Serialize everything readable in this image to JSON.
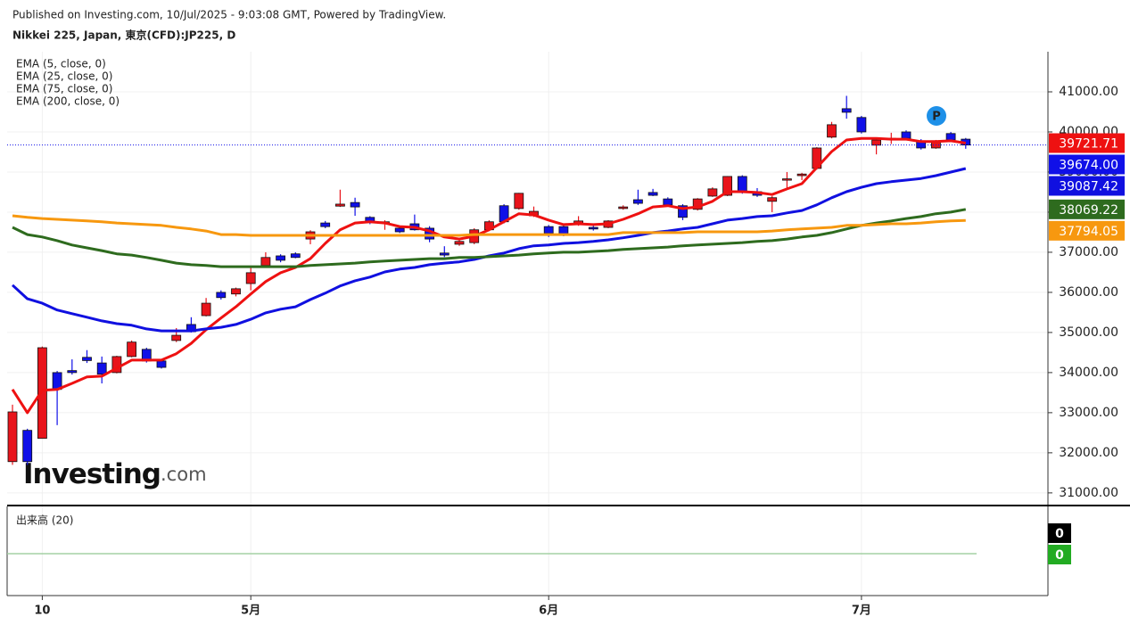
{
  "header": {
    "published": "Published on Investing.com, 10/Jul/2025 - 9:03:08 GMT, Powered by TradingView."
  },
  "chart_data": {
    "type": "candlestick",
    "title": "Nikkei 225, Japan, 東京(CFD):JP225, D",
    "logo": [
      "Investing",
      ".com"
    ],
    "marker_label": "P",
    "up_color": "#e8141b",
    "down_color": "#1010e8",
    "categories": [
      null,
      null,
      "10",
      null,
      null,
      null,
      null,
      null,
      null,
      null,
      null,
      null,
      null,
      null,
      null,
      null,
      "5月",
      null,
      null,
      null,
      null,
      null,
      null,
      null,
      null,
      null,
      null,
      null,
      null,
      null,
      null,
      null,
      null,
      null,
      null,
      null,
      "6月",
      null,
      null,
      null,
      null,
      null,
      null,
      null,
      null,
      null,
      null,
      null,
      null,
      null,
      null,
      null,
      null,
      null,
      null,
      null,
      null,
      "7月",
      null,
      null,
      null,
      null,
      null,
      null,
      null
    ],
    "open": [
      31780,
      32560,
      32360,
      34000,
      34050,
      34380,
      34240,
      34000,
      34400,
      34580,
      34290,
      34800,
      35200,
      35420,
      36000,
      35960,
      36220,
      36670,
      36910,
      36960,
      37330,
      37730,
      38150,
      38240,
      37870,
      37750,
      37600,
      37710,
      37600,
      36980,
      37200,
      37240,
      37560,
      38160,
      38090,
      37910,
      37640,
      37640,
      37690,
      37620,
      37620,
      38090,
      38310,
      38490,
      38330,
      38160,
      38070,
      38400,
      38420,
      38890,
      38510,
      38270,
      38800,
      38910,
      39090,
      39870,
      40580,
      40360,
      39670,
      39820,
      40000,
      39780,
      39600,
      39960,
      39820
    ],
    "high": [
      33200,
      32600,
      34650,
      34040,
      34330,
      34560,
      34400,
      34420,
      34800,
      34620,
      34320,
      35110,
      35380,
      35860,
      36050,
      36120,
      36620,
      37000,
      36950,
      37000,
      37550,
      37780,
      38560,
      38360,
      37900,
      37800,
      37640,
      37940,
      37650,
      37150,
      37300,
      37600,
      37800,
      38200,
      38480,
      38140,
      37680,
      37680,
      37900,
      37660,
      37800,
      38170,
      38560,
      38580,
      38370,
      38200,
      38350,
      38620,
      38900,
      38920,
      38600,
      38400,
      39000,
      38980,
      39620,
      40250,
      40900,
      40400,
      39860,
      39980,
      40040,
      39820,
      39800,
      40000,
      39850
    ],
    "low": [
      31700,
      31700,
      32360,
      32690,
      33950,
      34240,
      33730,
      33980,
      34380,
      34250,
      34100,
      34760,
      35000,
      35400,
      35820,
      35900,
      36050,
      36620,
      36750,
      36850,
      37200,
      37600,
      38130,
      37910,
      37700,
      37560,
      37480,
      37540,
      37250,
      36880,
      37160,
      37200,
      37530,
      37720,
      38060,
      37880,
      37380,
      37400,
      37660,
      37540,
      37600,
      38060,
      38180,
      38400,
      38140,
      37800,
      38040,
      38380,
      38400,
      38460,
      38380,
      38000,
      38600,
      38800,
      39060,
      39840,
      40330,
      39960,
      39440,
      39700,
      39820,
      39560,
      39580,
      39760,
      39580
    ],
    "close": [
      33020,
      31780,
      34620,
      33580,
      34000,
      34300,
      33960,
      34400,
      34760,
      34290,
      34130,
      34930,
      35020,
      35730,
      35870,
      36090,
      36490,
      36870,
      36800,
      36870,
      37510,
      37640,
      38200,
      38130,
      37760,
      37760,
      37510,
      37560,
      37330,
      36930,
      37270,
      37560,
      37760,
      37760,
      38470,
      38020,
      37470,
      37440,
      37780,
      37580,
      37780,
      38130,
      38220,
      38420,
      38180,
      37870,
      38330,
      38580,
      38890,
      38490,
      38420,
      38360,
      38830,
      38950,
      39600,
      40180,
      40490,
      40000,
      39800,
      39840,
      39840,
      39600,
      39780,
      39800,
      39674
    ],
    "close_label": "39674.00",
    "series": [
      {
        "name": "EMA (5, close, 0)",
        "color": "#ee1111",
        "last_label": "39721.71",
        "values": [
          33580,
          33000,
          33560,
          33580,
          33730,
          33890,
          33910,
          34110,
          34310,
          34310,
          34310,
          34470,
          34730,
          35070,
          35360,
          35640,
          35960,
          36270,
          36490,
          36620,
          36840,
          37220,
          37560,
          37730,
          37760,
          37730,
          37640,
          37620,
          37530,
          37380,
          37330,
          37400,
          37560,
          37760,
          37960,
          37930,
          37800,
          37690,
          37710,
          37690,
          37710,
          37820,
          37960,
          38130,
          38160,
          38090,
          38130,
          38270,
          38510,
          38510,
          38490,
          38440,
          38580,
          38710,
          39110,
          39510,
          39800,
          39840,
          39840,
          39820,
          39820,
          39760,
          39760,
          39780,
          39721.71
        ]
      },
      {
        "name": "EMA (25, close, 0)",
        "color": "#1010e0",
        "last_label": "39087.42",
        "values": [
          36180,
          35840,
          35730,
          35560,
          35470,
          35380,
          35290,
          35220,
          35180,
          35090,
          35040,
          35040,
          35040,
          35090,
          35130,
          35200,
          35330,
          35490,
          35580,
          35640,
          35820,
          35980,
          36160,
          36290,
          36380,
          36510,
          36580,
          36620,
          36690,
          36730,
          36760,
          36820,
          36910,
          36980,
          37090,
          37160,
          37180,
          37220,
          37240,
          37270,
          37310,
          37360,
          37420,
          37490,
          37530,
          37580,
          37620,
          37710,
          37800,
          37840,
          37890,
          37910,
          37980,
          38040,
          38180,
          38360,
          38510,
          38620,
          38710,
          38760,
          38800,
          38840,
          38910,
          39000,
          39087.42
        ]
      },
      {
        "name": "EMA (75, close, 0)",
        "color": "#2e6b1e",
        "last_label": "38069.22",
        "values": [
          37620,
          37440,
          37380,
          37290,
          37180,
          37110,
          37040,
          36960,
          36930,
          36870,
          36800,
          36730,
          36690,
          36670,
          36640,
          36640,
          36640,
          36640,
          36640,
          36640,
          36670,
          36690,
          36710,
          36730,
          36760,
          36780,
          36800,
          36820,
          36840,
          36840,
          36870,
          36870,
          36890,
          36910,
          36930,
          36960,
          36980,
          37000,
          37000,
          37020,
          37040,
          37070,
          37090,
          37110,
          37130,
          37160,
          37180,
          37200,
          37220,
          37240,
          37270,
          37290,
          37330,
          37380,
          37420,
          37490,
          37580,
          37670,
          37730,
          37780,
          37840,
          37890,
          37960,
          38000,
          38069.22
        ]
      },
      {
        "name": "EMA (200, close, 0)",
        "color": "#f7980f",
        "last_label": "37794.05",
        "values": [
          37910,
          37870,
          37840,
          37820,
          37800,
          37780,
          37760,
          37730,
          37710,
          37690,
          37670,
          37620,
          37580,
          37530,
          37440,
          37440,
          37420,
          37420,
          37420,
          37420,
          37420,
          37420,
          37420,
          37420,
          37420,
          37420,
          37420,
          37420,
          37420,
          37420,
          37420,
          37440,
          37440,
          37440,
          37440,
          37440,
          37440,
          37440,
          37440,
          37440,
          37440,
          37490,
          37490,
          37490,
          37490,
          37490,
          37510,
          37510,
          37510,
          37510,
          37510,
          37530,
          37560,
          37580,
          37600,
          37620,
          37670,
          37670,
          37690,
          37710,
          37710,
          37730,
          37760,
          37780,
          37794.05
        ]
      }
    ],
    "ylim": [
      30730,
      42000
    ],
    "yticks": [
      {
        "value": 31000,
        "label": "31000.00"
      },
      {
        "value": 32000,
        "label": "32000.00"
      },
      {
        "value": 33000,
        "label": "33000.00"
      },
      {
        "value": 34000,
        "label": "34000.00"
      },
      {
        "value": 35000,
        "label": "35000.00"
      },
      {
        "value": 36000,
        "label": "36000.00"
      },
      {
        "value": 37000,
        "label": "37000.00"
      },
      {
        "value": 38000,
        "label": "38000.00"
      },
      {
        "value": 39000,
        "label": "39000.00"
      },
      {
        "value": 40000,
        "label": "40000.00"
      },
      {
        "value": 41000,
        "label": "41000.00"
      }
    ],
    "grid": true,
    "volume": {
      "title": "出来高 (20)",
      "tags": [
        {
          "value": 0,
          "color": "#000000"
        },
        {
          "value": 0,
          "color": "#22ab22"
        }
      ]
    }
  }
}
